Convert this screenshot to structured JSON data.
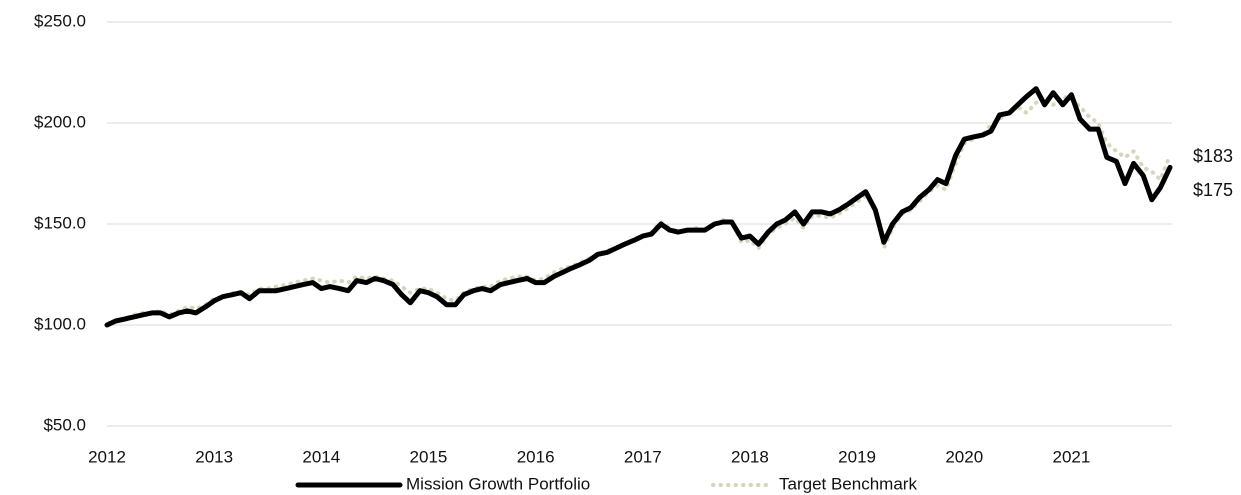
{
  "chart_data": {
    "type": "line",
    "x": [
      2012,
      2012.08,
      2012.17,
      2012.25,
      2012.33,
      2012.42,
      2012.5,
      2012.58,
      2012.67,
      2012.75,
      2012.83,
      2012.92,
      2013,
      2013.08,
      2013.17,
      2013.25,
      2013.33,
      2013.42,
      2013.5,
      2013.58,
      2013.67,
      2013.75,
      2013.83,
      2013.92,
      2014,
      2014.08,
      2014.17,
      2014.25,
      2014.33,
      2014.42,
      2014.5,
      2014.58,
      2014.67,
      2014.75,
      2014.83,
      2014.92,
      2015,
      2015.08,
      2015.17,
      2015.25,
      2015.33,
      2015.42,
      2015.5,
      2015.58,
      2015.67,
      2015.75,
      2015.83,
      2015.92,
      2016,
      2016.08,
      2016.17,
      2016.25,
      2016.33,
      2016.42,
      2016.5,
      2016.58,
      2016.67,
      2016.75,
      2016.83,
      2016.92,
      2017,
      2017.08,
      2017.17,
      2017.25,
      2017.33,
      2017.42,
      2017.5,
      2017.58,
      2017.67,
      2017.75,
      2017.83,
      2017.92,
      2018,
      2018.08,
      2018.17,
      2018.25,
      2018.33,
      2018.42,
      2018.5,
      2018.58,
      2018.67,
      2018.75,
      2018.83,
      2018.92,
      2019,
      2019.08,
      2019.17,
      2019.25,
      2019.33,
      2019.42,
      2019.5,
      2019.58,
      2019.67,
      2019.75,
      2019.83,
      2019.92,
      2020,
      2020.08,
      2020.17,
      2020.25,
      2020.33,
      2020.42,
      2020.5,
      2020.58,
      2020.67,
      2020.75,
      2020.83,
      2020.92,
      2021,
      2021.08,
      2021.17,
      2021.25,
      2021.33,
      2021.42,
      2021.5,
      2021.58,
      2021.67,
      2021.75,
      2021.83,
      2021.92
    ],
    "series": [
      {
        "name": "Mission Growth Portfolio",
        "color": "#000000",
        "style": "solid",
        "values": [
          100,
          102,
          103,
          104,
          105,
          106,
          106,
          104,
          106,
          107,
          106,
          109,
          112,
          114,
          115,
          116,
          113,
          117,
          117,
          117,
          118,
          119,
          120,
          121,
          118,
          119,
          118,
          117,
          122,
          121,
          123,
          122,
          120,
          115,
          111,
          117,
          116,
          114,
          110,
          110,
          115,
          117,
          118,
          117,
          120,
          121,
          122,
          123,
          121,
          121,
          124,
          126,
          128,
          130,
          132,
          135,
          136,
          138,
          140,
          142,
          144,
          145,
          150,
          147,
          146,
          147,
          147,
          147,
          150,
          151,
          151,
          143,
          144,
          140,
          146,
          150,
          152,
          156,
          150,
          156,
          156,
          155,
          157,
          160,
          163,
          166,
          157,
          141,
          150,
          156,
          158,
          163,
          167,
          172,
          170,
          184,
          192,
          193,
          194,
          196,
          204,
          205,
          209,
          213,
          217,
          209,
          215,
          209,
          214,
          202,
          197,
          197,
          183,
          181,
          170,
          180,
          174,
          162,
          168,
          178
        ]
      },
      {
        "name": "Target Benchmark",
        "color": "#d9d4bd",
        "style": "dotted",
        "values": [
          100,
          102,
          103,
          105,
          106,
          106,
          107,
          105,
          107,
          109,
          108,
          110,
          113,
          114,
          116,
          116,
          115,
          118,
          118,
          119,
          120,
          121,
          122,
          123,
          122,
          121,
          122,
          121,
          124,
          123,
          124,
          123,
          122,
          119,
          116,
          118,
          118,
          116,
          113,
          112,
          116,
          118,
          119,
          119,
          122,
          123,
          124,
          124,
          122,
          123,
          126,
          128,
          129,
          131,
          133,
          135,
          137,
          138,
          140,
          142,
          144,
          146,
          151,
          148,
          146,
          147,
          148,
          147,
          150,
          152,
          151,
          141,
          142,
          138,
          145,
          148,
          150,
          153,
          148,
          154,
          154,
          153,
          155,
          158,
          161,
          164,
          158,
          138,
          148,
          155,
          157,
          161,
          166,
          169,
          167,
          180,
          190,
          192,
          194,
          199,
          202,
          206,
          208,
          205,
          210,
          213,
          209,
          213,
          212,
          208,
          203,
          200,
          190,
          186,
          183,
          186,
          178,
          176,
          172,
          184
        ]
      }
    ],
    "annotations": [
      "$183",
      "$175"
    ],
    "xlim": [
      2012,
      2021.92
    ],
    "xticks": [
      2012,
      2013,
      2014,
      2015,
      2016,
      2017,
      2018,
      2019,
      2020,
      2021
    ],
    "ylim": [
      50,
      250
    ],
    "yticks": [
      {
        "value": 50,
        "label": "$50.0"
      },
      {
        "value": 100,
        "label": "$100.0"
      },
      {
        "value": 150,
        "label": "$150.0"
      },
      {
        "value": 200,
        "label": "$200.0"
      },
      {
        "value": 250,
        "label": "$250.0"
      }
    ],
    "grid": true,
    "legend": "bottom"
  }
}
